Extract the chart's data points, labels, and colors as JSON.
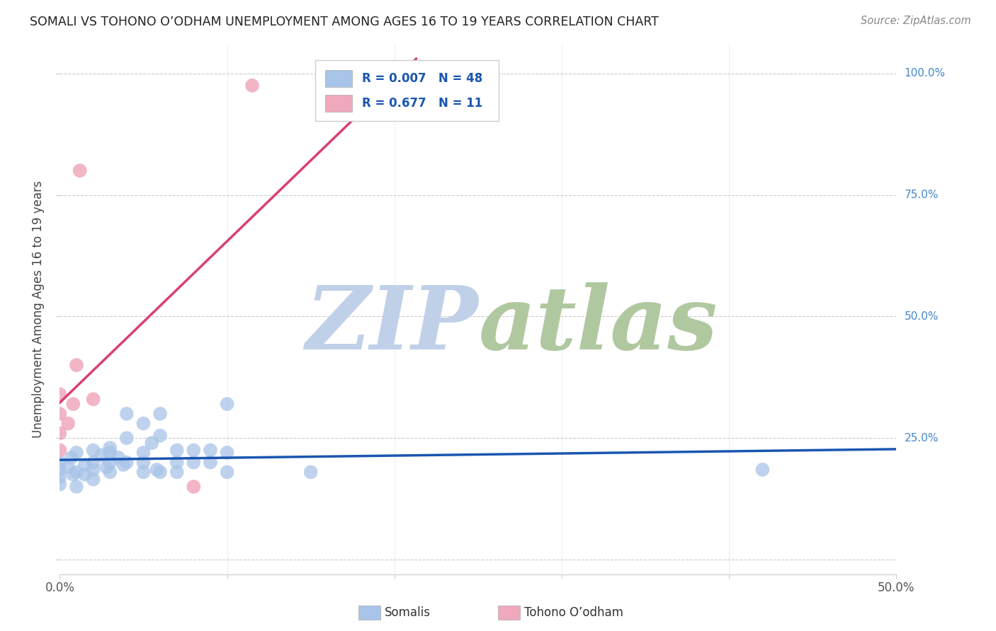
{
  "title": "SOMALI VS TOHONO O’ODHAM UNEMPLOYMENT AMONG AGES 16 TO 19 YEARS CORRELATION CHART",
  "source": "Source: ZipAtlas.com",
  "ylabel_label": "Unemployment Among Ages 16 to 19 years",
  "legend_label1": "Somalis",
  "legend_label2": "Tohono O’odham",
  "R_blue": 0.007,
  "N_blue": 48,
  "R_pink": 0.677,
  "N_pink": 11,
  "blue_color": "#a8c4e8",
  "pink_color": "#f0a8bc",
  "blue_line_color": "#1a56b0",
  "pink_line_color": "#d94070",
  "watermark_zip": "ZIP",
  "watermark_atlas": "atlas",
  "watermark_color_zip": "#c0d0e8",
  "watermark_color_atlas": "#b0c8a0",
  "blue_dots": [
    [
      0.0,
      0.185
    ],
    [
      0.0,
      0.2
    ],
    [
      0.0,
      0.17
    ],
    [
      0.0,
      0.155
    ],
    [
      0.005,
      0.19
    ],
    [
      0.007,
      0.21
    ],
    [
      0.008,
      0.175
    ],
    [
      0.01,
      0.22
    ],
    [
      0.01,
      0.18
    ],
    [
      0.01,
      0.15
    ],
    [
      0.015,
      0.195
    ],
    [
      0.015,
      0.175
    ],
    [
      0.02,
      0.225
    ],
    [
      0.02,
      0.185
    ],
    [
      0.02,
      0.2
    ],
    [
      0.02,
      0.165
    ],
    [
      0.025,
      0.215
    ],
    [
      0.028,
      0.19
    ],
    [
      0.03,
      0.23
    ],
    [
      0.03,
      0.2
    ],
    [
      0.03,
      0.18
    ],
    [
      0.03,
      0.22
    ],
    [
      0.035,
      0.21
    ],
    [
      0.038,
      0.195
    ],
    [
      0.04,
      0.3
    ],
    [
      0.04,
      0.25
    ],
    [
      0.04,
      0.2
    ],
    [
      0.05,
      0.18
    ],
    [
      0.05,
      0.2
    ],
    [
      0.05,
      0.22
    ],
    [
      0.05,
      0.28
    ],
    [
      0.055,
      0.24
    ],
    [
      0.058,
      0.185
    ],
    [
      0.06,
      0.255
    ],
    [
      0.06,
      0.18
    ],
    [
      0.06,
      0.3
    ],
    [
      0.07,
      0.225
    ],
    [
      0.07,
      0.2
    ],
    [
      0.07,
      0.18
    ],
    [
      0.08,
      0.225
    ],
    [
      0.08,
      0.2
    ],
    [
      0.09,
      0.225
    ],
    [
      0.09,
      0.2
    ],
    [
      0.1,
      0.32
    ],
    [
      0.1,
      0.22
    ],
    [
      0.1,
      0.18
    ],
    [
      0.15,
      0.18
    ],
    [
      0.42,
      0.185
    ]
  ],
  "pink_dots": [
    [
      0.0,
      0.26
    ],
    [
      0.0,
      0.225
    ],
    [
      0.0,
      0.3
    ],
    [
      0.0,
      0.34
    ],
    [
      0.005,
      0.28
    ],
    [
      0.008,
      0.32
    ],
    [
      0.01,
      0.4
    ],
    [
      0.012,
      0.8
    ],
    [
      0.02,
      0.33
    ],
    [
      0.08,
      0.15
    ],
    [
      0.115,
      0.975
    ]
  ],
  "xlim": [
    0.0,
    0.5
  ],
  "ylim": [
    -0.03,
    1.06
  ],
  "yticks": [
    0.0,
    0.25,
    0.5,
    0.75,
    1.0
  ],
  "xticks": [
    0.0,
    0.1,
    0.2,
    0.3,
    0.4,
    0.5
  ],
  "background_color": "#ffffff",
  "grid_color": "#cccccc"
}
